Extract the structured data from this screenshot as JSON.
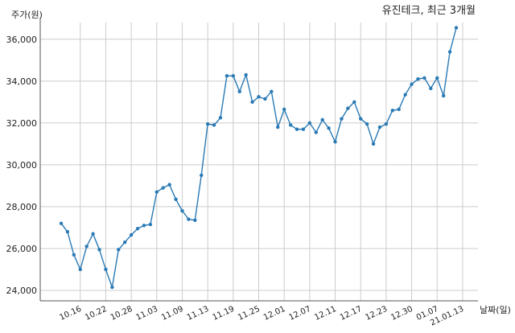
{
  "chart_data": {
    "type": "line",
    "title": "유진테크, 최근 3개월",
    "ylabel": "주가(원)",
    "xlabel": "날짜(일)",
    "ylim": [
      23500,
      36800
    ],
    "yticks": [
      24000,
      26000,
      28000,
      30000,
      32000,
      34000,
      36000
    ],
    "ytick_labels": [
      "24,000",
      "26,000",
      "28,000",
      "30,000",
      "32,000",
      "34,000",
      "36,000"
    ],
    "xtick_labels": [
      "10.16",
      "10.22",
      "10.28",
      "11.03",
      "11.09",
      "11.13",
      "11.19",
      "11.25",
      "12.01",
      "12.07",
      "12.11",
      "12.17",
      "12.23",
      "12.30",
      "01.07",
      "21.01.13"
    ],
    "xtick_indices": [
      3,
      7,
      11,
      15,
      19,
      23,
      27,
      31,
      35,
      39,
      43,
      47,
      51,
      55,
      59,
      63
    ],
    "grid": true,
    "line_color": "#2a7ab5",
    "series": [
      {
        "values": [
          27200,
          26800,
          25700,
          25000,
          26100,
          26700,
          25950,
          25000,
          24150,
          25950,
          26300,
          26650,
          26950,
          27100,
          27150,
          28700,
          28900,
          29050,
          28350,
          27800,
          27400,
          27350,
          29500,
          31950,
          31900,
          32250,
          34250,
          34250,
          33500,
          34300,
          33000,
          33250,
          33150,
          33500,
          31800,
          32650,
          31900,
          31700,
          31700,
          32000,
          31550,
          32150,
          31750,
          31100,
          32200,
          32700,
          33000,
          32200,
          31950,
          31000,
          31800,
          31950,
          32600,
          32650,
          33350,
          33850,
          34100,
          34150,
          33650,
          34150,
          33300,
          35400,
          36550
        ]
      }
    ]
  }
}
